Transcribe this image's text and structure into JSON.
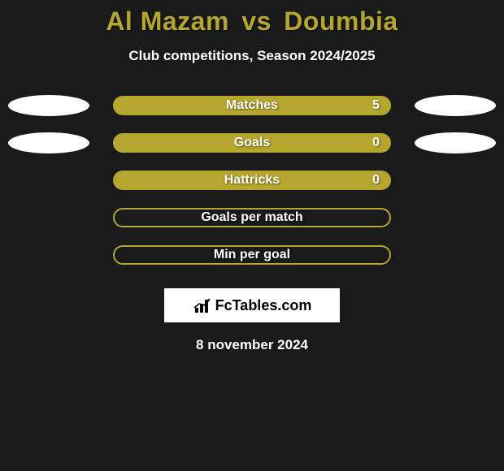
{
  "title": {
    "left": "Al Mazam",
    "vs": "vs",
    "right": "Doumbia",
    "color": "#b5a62f"
  },
  "subtitle": "Club competitions, Season 2024/2025",
  "background": "#1a1a1a",
  "ellipse_colors": {
    "left": "#ffffff",
    "right": "#ffffff"
  },
  "bar_fill": "#b5a62f",
  "bar_border": "#b5a62f",
  "rows": [
    {
      "label": "Matches",
      "value": "5",
      "filled": true,
      "show_left_ellipse": true,
      "show_right_ellipse": true,
      "show_value": true
    },
    {
      "label": "Goals",
      "value": "0",
      "filled": true,
      "show_left_ellipse": true,
      "show_right_ellipse": true,
      "show_value": true
    },
    {
      "label": "Hattricks",
      "value": "0",
      "filled": true,
      "show_left_ellipse": false,
      "show_right_ellipse": false,
      "show_value": true
    },
    {
      "label": "Goals per match",
      "value": "",
      "filled": false,
      "show_left_ellipse": false,
      "show_right_ellipse": false,
      "show_value": false
    },
    {
      "label": "Min per goal",
      "value": "",
      "filled": false,
      "show_left_ellipse": false,
      "show_right_ellipse": false,
      "show_value": false
    }
  ],
  "logo_text": "FcTables.com",
  "date": "8 november 2024"
}
